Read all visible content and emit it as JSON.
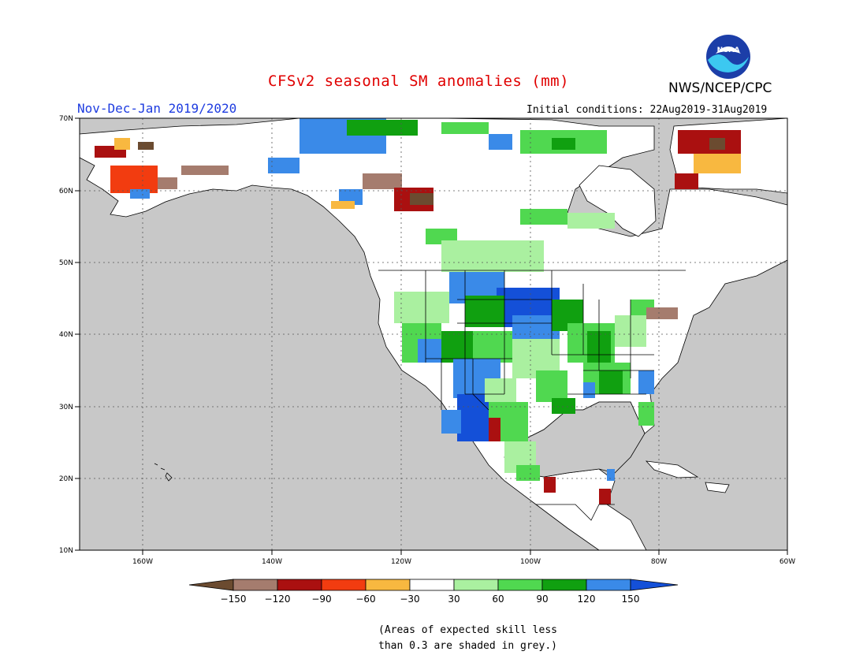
{
  "header": {
    "title": "CFSv2 seasonal SM anomalies (mm)",
    "agency": "NWS/NCEP/CPC",
    "season": "Nov-Dec-Jan 2019/2020",
    "initial_conditions": "Initial conditions: 22Aug2019-31Aug2019",
    "logo_text": "NOAA"
  },
  "map": {
    "lat_labels": [
      "70N",
      "60N",
      "50N",
      "40N",
      "30N",
      "20N",
      "10N"
    ],
    "lon_labels": [
      "160W",
      "140W",
      "120W",
      "100W",
      "80W",
      "60W"
    ],
    "ocean_color": "#c8c8c8",
    "land_color": "#ffffff",
    "regions": [
      {
        "name": "wet-northern-plains",
        "category": "120-150"
      },
      {
        "name": "wet-southwest",
        "category": "120-150"
      },
      {
        "name": "wet-midwest",
        "category": "90-120"
      },
      {
        "name": "dry-alaska",
        "category": "-60 to -90"
      },
      {
        "name": "dry-northeast-canada",
        "category": "-120 to -150"
      },
      {
        "name": "wet-arctic-canada",
        "category": "120-150"
      }
    ]
  },
  "legend": {
    "labels": [
      "-150",
      "-120",
      "-90",
      "-60",
      "-30",
      "30",
      "60",
      "90",
      "120",
      "150"
    ],
    "colors": [
      "#6b4b30",
      "#a57c6e",
      "#aa1010",
      "#f23c10",
      "#f8b840",
      "#ffffff",
      "#aaf0a0",
      "#50d850",
      "#10a010",
      "#3a8ae8",
      "#1450d8"
    ]
  },
  "footnote": {
    "line1": "(Areas of expected skill less",
    "line2": "than 0.3 are shaded in grey.)"
  }
}
